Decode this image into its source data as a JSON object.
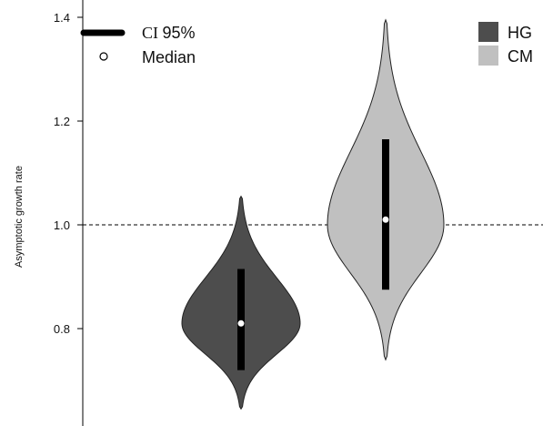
{
  "chart_data": {
    "type": "violin",
    "xlabel": "",
    "ylabel": "Asymptotic growth rate",
    "ylim": [
      0.62,
      1.43
    ],
    "yticks": [
      0.8,
      1.0,
      1.2,
      1.4
    ],
    "ytick_labels": [
      "0.8",
      "1.0",
      "1.2",
      "1.4"
    ],
    "reference_line": {
      "y": 1.0,
      "style": "dashed"
    },
    "grid": false,
    "legend_position": "top",
    "legend": {
      "ci_label_prefix": "CI",
      "ci_label_value": "95%",
      "median_label": "Median",
      "series_labels": [
        "HG",
        "CM"
      ]
    },
    "series": [
      {
        "name": "HG",
        "color": "#4d4d4d",
        "min": 0.645,
        "max": 1.055,
        "mode": 0.81,
        "median": 0.81,
        "ci95": [
          0.72,
          0.915
        ]
      },
      {
        "name": "CM",
        "color": "#c0c0c0",
        "min": 0.74,
        "max": 1.395,
        "mode": 1.0,
        "median": 1.01,
        "ci95": [
          0.875,
          1.165
        ]
      }
    ]
  }
}
